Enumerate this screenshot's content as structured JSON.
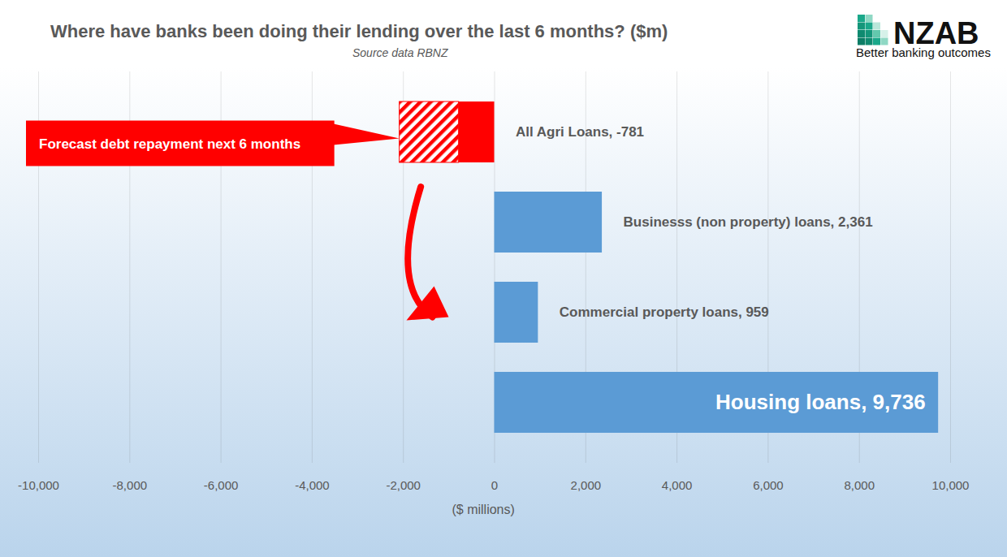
{
  "chart_data": {
    "type": "bar",
    "orientation": "horizontal",
    "title": "Where have banks been doing their lending over the last 6 months? ($m)",
    "subtitle": "Source data RBNZ",
    "logo": {
      "text": "NZAB",
      "tagline": "Better banking outcomes"
    },
    "categories": [
      "All Agri Loans",
      "Businesss (non property) loans",
      "Commercial property loans",
      "Housing loans"
    ],
    "values": [
      -781,
      2361,
      959,
      9736
    ],
    "value_labels": [
      "All Agri Loans, -781",
      "Businesss (non property) loans, 2,361",
      "Commercial property loans, 959",
      "Housing loans, 9,736"
    ],
    "colors": [
      "#ff0000",
      "#5b9bd5",
      "#5b9bd5",
      "#5b9bd5"
    ],
    "data_labels": true,
    "xlabel": "($ millions)",
    "xlim": [
      -10000,
      10000
    ],
    "xticks": [
      {
        "value": -10000,
        "label": "-10,000"
      },
      {
        "value": -8000,
        "label": "-8,000"
      },
      {
        "value": -6000,
        "label": "-6,000"
      },
      {
        "value": -4000,
        "label": "-4,000"
      },
      {
        "value": -2000,
        "label": "-2,000"
      },
      0,
      {
        "value": 2000,
        "label": "2,000"
      },
      {
        "value": 4000,
        "label": "4,000"
      },
      {
        "value": 6000,
        "label": "6,000"
      },
      {
        "value": 8000,
        "label": "8,000"
      },
      {
        "value": 10000,
        "label": "10,000"
      }
    ],
    "grid": true,
    "tick_labels": "x",
    "annotations": [
      {
        "text": "Forecast debt repayment next 6 months",
        "category": "All Agri Loans",
        "value": -1300,
        "color": "#ff0000"
      }
    ]
  }
}
